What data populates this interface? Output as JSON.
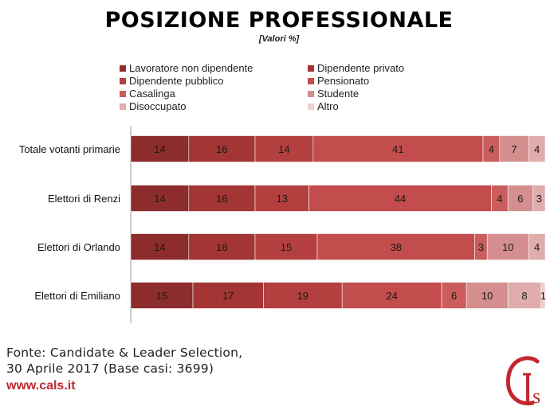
{
  "header": {
    "title": "POSIZIONE PROFESSIONALE",
    "subtitle": "[Valori %]"
  },
  "legend": {
    "items": [
      {
        "label": "Lavoratore non dipendente",
        "color": "#8d2c2c"
      },
      {
        "label": "Dipendente privato",
        "color": "#a33535"
      },
      {
        "label": "Dipendente pubblico",
        "color": "#b43f3f"
      },
      {
        "label": "Pensionato",
        "color": "#c34c4c"
      },
      {
        "label": "Casalinga",
        "color": "#cc5d5d"
      },
      {
        "label": "Studente",
        "color": "#d48e8e"
      },
      {
        "label": "Disoccupato",
        "color": "#e0acac"
      },
      {
        "label": "Altro",
        "color": "#ecd0d0"
      }
    ]
  },
  "chart_data": {
    "type": "bar",
    "orientation": "horizontal",
    "stacked": true,
    "title": "POSIZIONE PROFESSIONALE",
    "subtitle": "[Valori %]",
    "categories": [
      "Totale votanti primarie",
      "Elettori di Renzi",
      "Elettori di Orlando",
      "Elettori di Emiliano"
    ],
    "series": [
      {
        "name": "Lavoratore non dipendente",
        "values": [
          14,
          14,
          14,
          15
        ],
        "color": "#8d2c2c"
      },
      {
        "name": "Dipendente privato",
        "values": [
          16,
          16,
          16,
          17
        ],
        "color": "#a33535"
      },
      {
        "name": "Dipendente pubblico",
        "values": [
          14,
          13,
          15,
          19
        ],
        "color": "#b43f3f"
      },
      {
        "name": "Pensionato",
        "values": [
          41,
          44,
          38,
          24
        ],
        "color": "#c34c4c"
      },
      {
        "name": "Casalinga",
        "values": [
          4,
          4,
          3,
          6
        ],
        "color": "#cc5d5d"
      },
      {
        "name": "Studente",
        "values": [
          7,
          6,
          10,
          10
        ],
        "color": "#d48e8e"
      },
      {
        "name": "Disoccupato",
        "values": [
          4,
          3,
          4,
          8
        ],
        "color": "#e0acac"
      },
      {
        "name": "Altro",
        "values": [
          0,
          0,
          0,
          1
        ],
        "color": "#ecd0d0"
      }
    ],
    "xlim": [
      0,
      100
    ],
    "grid": false,
    "legend_position": "top"
  },
  "footer": {
    "source_line1": "Fonte: Candidate & Leader Selection,",
    "source_line2": "30 Aprile 2017 (Base casi: 3699)",
    "website": "www.cals.it"
  },
  "logo": {
    "letters": "Cls",
    "color": "#c0282e"
  }
}
